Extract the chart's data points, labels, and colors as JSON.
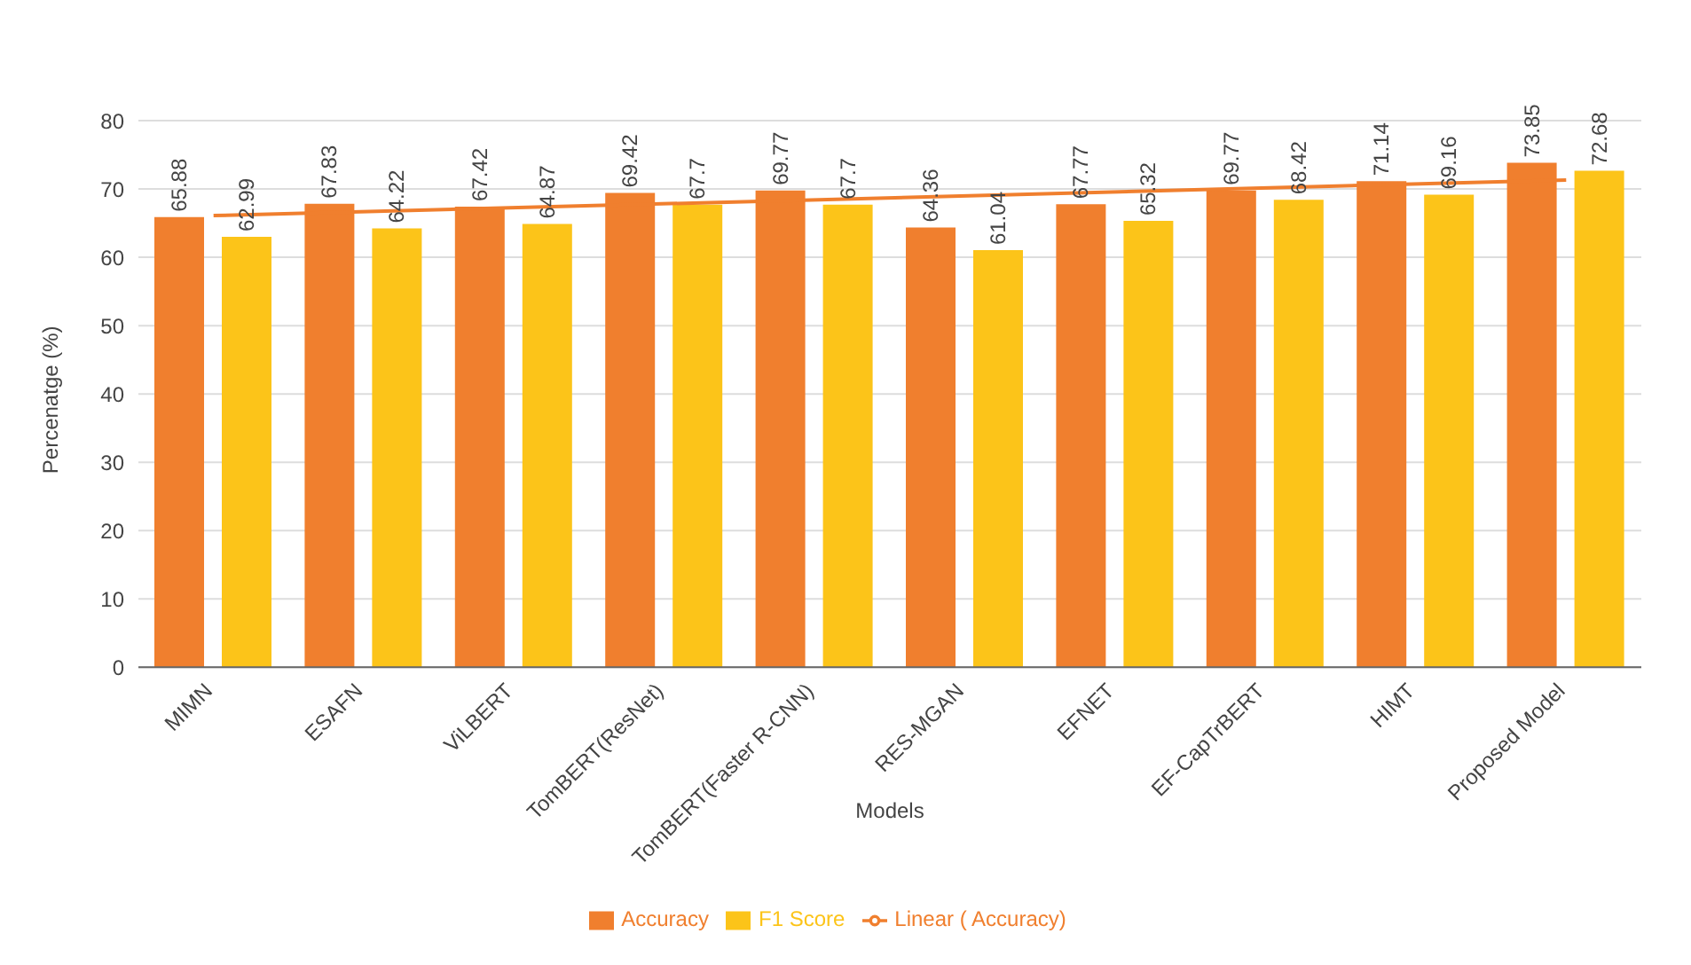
{
  "chart_data": {
    "type": "bar",
    "xlabel": "Models",
    "ylabel": "Percenatge (%)",
    "categories": [
      "MIMN",
      "ESAFN",
      "ViLBERT",
      "TomBERT(ResNet)",
      "TomBERT(Faster R-CNN)",
      "RES-MGAN",
      "EFNET",
      "EF-CapTrBERT",
      "HIMT",
      "Proposed Model"
    ],
    "series": [
      {
        "name": "Accuracy",
        "color": "#f07f2e",
        "values": [
          65.88,
          67.83,
          67.42,
          69.42,
          69.77,
          64.36,
          67.77,
          69.77,
          71.14,
          73.85
        ],
        "value_labels": [
          "65.88",
          "67.83",
          "67.42",
          "69.42",
          "69.77",
          "64.36",
          "67.77",
          "69.77",
          "71.14",
          "73.85"
        ]
      },
      {
        "name": "F1 Score",
        "color": "#fcc419",
        "values": [
          62.99,
          64.22,
          64.87,
          67.7,
          67.7,
          61.04,
          65.32,
          68.42,
          69.16,
          72.68
        ],
        "value_labels": [
          "62.99",
          "64.22",
          "64.87",
          "67.7",
          "67.7",
          "61.04",
          "65.32",
          "68.42",
          "69.16",
          "72.68"
        ]
      },
      {
        "name": "Linear ( Accuracy)",
        "type": "line",
        "color": "#f07f2e",
        "x": [
          "MIMN",
          "Proposed Model"
        ],
        "values": [
          66.1,
          71.3
        ]
      }
    ],
    "ylim": [
      0,
      80
    ],
    "yticks": [
      0,
      10,
      20,
      30,
      40,
      50,
      60,
      70,
      80
    ],
    "grid": "y",
    "legend": "bottom",
    "marker": "none"
  }
}
